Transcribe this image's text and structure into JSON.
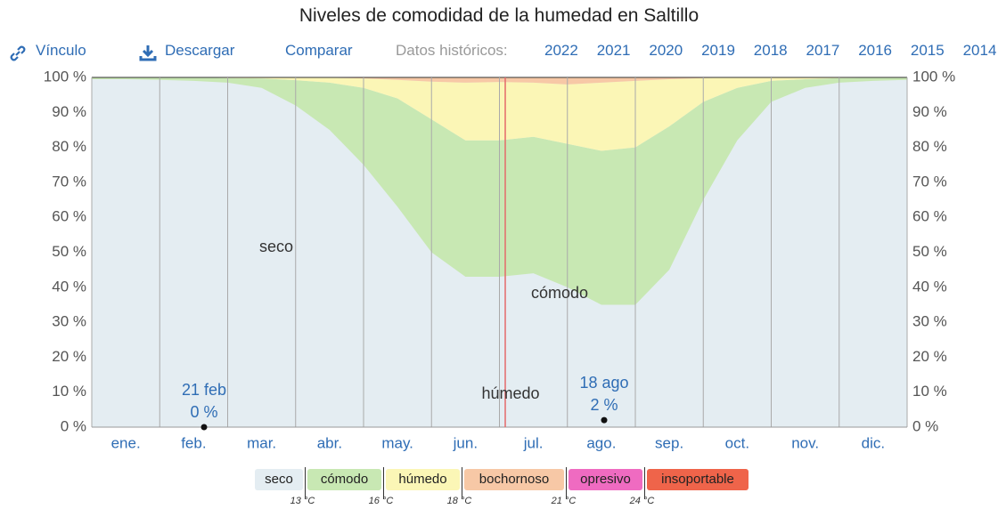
{
  "toolbar": {
    "link": "Vínculo",
    "download": "Descargar",
    "compare": "Comparar",
    "history_label": "Datos históricos:",
    "years": [
      "2022",
      "2021",
      "2020",
      "2019",
      "2018",
      "2017",
      "2016",
      "2015",
      "2014"
    ]
  },
  "chart_data": {
    "type": "stacked-area",
    "title": "Niveles de comodidad de la humedad en Saltillo",
    "categories": [
      null,
      "ene.",
      null,
      "feb.",
      null,
      "mar.",
      null,
      "abr.",
      null,
      "may.",
      null,
      "jun.",
      null,
      "jul.",
      null,
      "ago.",
      null,
      "sep.",
      null,
      "oct.",
      null,
      "nov.",
      null,
      "dic.",
      null
    ],
    "series": [
      {
        "name": "seco",
        "color": "#e4edf2",
        "values": [
          99.5,
          99.5,
          99.3,
          99,
          98.5,
          97,
          92,
          85,
          75,
          63,
          50,
          43,
          43,
          44,
          40,
          35,
          35,
          45,
          65,
          82,
          93,
          97,
          98.5,
          99,
          99.3
        ]
      },
      {
        "name": "cómodo",
        "color": "#c8e8b3",
        "values": [
          0.5,
          0.5,
          0.7,
          1,
          1.3,
          2.7,
          7.2,
          13.5,
          22,
          31,
          38,
          39,
          39,
          39,
          41,
          44,
          45,
          41,
          28,
          15,
          6,
          2.5,
          1.3,
          0.9,
          0.7
        ]
      },
      {
        "name": "húmedo",
        "color": "#fbf6b6",
        "values": [
          0,
          0,
          0,
          0,
          0.2,
          0.3,
          0.8,
          1.4,
          2.7,
          5.3,
          10.8,
          16.5,
          16.7,
          15.5,
          17,
          19.5,
          19,
          13.5,
          6.8,
          3,
          1,
          0.5,
          0.2,
          0.1,
          0
        ]
      },
      {
        "name": "bochornoso",
        "color": "#f7c8a6",
        "values": [
          0,
          0,
          0,
          0,
          0,
          0,
          0,
          0.1,
          0.3,
          0.7,
          1.2,
          1.5,
          1.3,
          1.5,
          2,
          1.5,
          1,
          0.5,
          0.2,
          0,
          0,
          0,
          0,
          0,
          0
        ]
      },
      {
        "name": "opresivo",
        "color": "#ef6bc1",
        "values": [
          0,
          0,
          0,
          0,
          0,
          0,
          0,
          0,
          0,
          0,
          0,
          0,
          0,
          0,
          0,
          0,
          0,
          0,
          0,
          0,
          0,
          0,
          0,
          0,
          0
        ]
      },
      {
        "name": "insoportable",
        "color": "#ef644a",
        "values": [
          0,
          0,
          0,
          0,
          0,
          0,
          0,
          0,
          0,
          0,
          0,
          0,
          0,
          0,
          0,
          0,
          0,
          0,
          0,
          0,
          0,
          0,
          0,
          0,
          0
        ]
      }
    ],
    "ylim": [
      0,
      100
    ],
    "yticks": [
      {
        "value": 0,
        "label": "0 %"
      },
      {
        "value": 10,
        "label": "10 %"
      },
      {
        "value": 20,
        "label": "20 %"
      },
      {
        "value": 30,
        "label": "30 %"
      },
      {
        "value": 40,
        "label": "40 %"
      },
      {
        "value": 50,
        "label": "50 %"
      },
      {
        "value": 60,
        "label": "60 %"
      },
      {
        "value": 70,
        "label": "70 %"
      },
      {
        "value": 80,
        "label": "80 %"
      },
      {
        "value": 90,
        "label": "90 %"
      },
      {
        "value": 100,
        "label": "100 %"
      }
    ],
    "grid": true,
    "annotations": [
      {
        "label": "21 feb",
        "value": 0,
        "value_label": "0 %"
      },
      {
        "label": "18 ago",
        "value": 2,
        "value_label": "2 %"
      }
    ],
    "thresholds": [
      "13 °C",
      "16 °C",
      "18 °C",
      "21 °C",
      "24 °C"
    ]
  }
}
